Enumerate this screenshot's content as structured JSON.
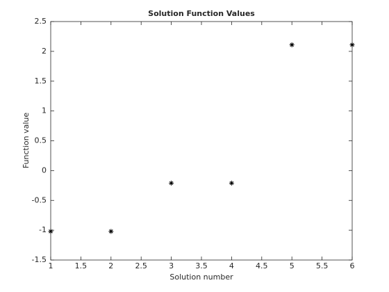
{
  "chart_data": {
    "type": "scatter",
    "title": "Solution Function Values",
    "x_label": "Solution number",
    "y_label": "Function value",
    "x": [
      1,
      2,
      3,
      4,
      5,
      6
    ],
    "series": [
      {
        "values": [
          -1.02,
          -1.02,
          -0.21,
          -0.21,
          2.11,
          2.11
        ],
        "color": "#000000",
        "marker": "*"
      }
    ],
    "xlim": [
      1,
      6
    ],
    "ylim": [
      -1.5,
      2.5
    ],
    "xticks": [
      1,
      1.5,
      2,
      2.5,
      3,
      3.5,
      4,
      4.5,
      5,
      5.5,
      6
    ],
    "yticks": [
      -1.5,
      -1,
      -0.5,
      0,
      0.5,
      1,
      1.5,
      2,
      2.5
    ],
    "grid": false
  }
}
